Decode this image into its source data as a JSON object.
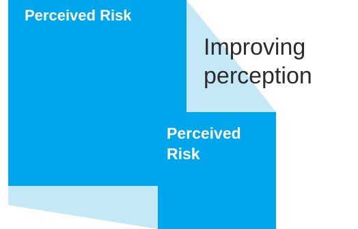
{
  "diagram": {
    "large_box_label": "Perceived Risk",
    "small_box_label": "Perceived Risk",
    "caption": "Improving perception"
  },
  "colors": {
    "box_fill": "#00a6ec",
    "projection_fill": "#c5e8f6",
    "caption_text": "#2b2b2b",
    "label_text": "#ffffff"
  }
}
